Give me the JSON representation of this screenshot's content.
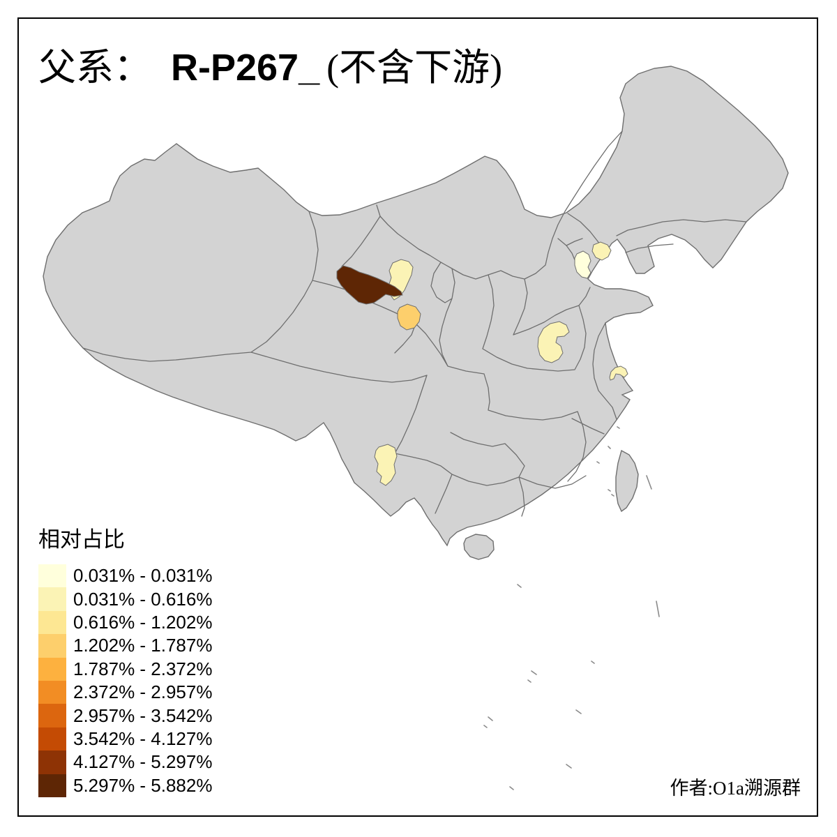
{
  "title": {
    "prefix": "父系：",
    "code": "R-P267_",
    "suffix": "(不含下游)"
  },
  "legend": {
    "title": "相对占比",
    "classes": [
      {
        "label": "0.031% - 0.031%",
        "color": "#FFFFDC"
      },
      {
        "label": "0.031% - 0.616%",
        "color": "#FBF3B5"
      },
      {
        "label": "0.616% - 1.202%",
        "color": "#FDE793"
      },
      {
        "label": "1.202% - 1.787%",
        "color": "#FDCF6C"
      },
      {
        "label": "1.787% - 2.372%",
        "color": "#FDB13F"
      },
      {
        "label": "2.372% - 2.957%",
        "color": "#F28D24"
      },
      {
        "label": "2.957% - 3.542%",
        "color": "#DC660F"
      },
      {
        "label": "3.542% - 4.127%",
        "color": "#C44B04"
      },
      {
        "label": "4.127% - 5.297%",
        "color": "#8E3305"
      },
      {
        "label": "5.297% - 5.882%",
        "color": "#5E2605"
      }
    ]
  },
  "attribution": "作者:O1a溯源群",
  "map": {
    "land_color": "#d3d3d3",
    "border_color": "#6e6e6e",
    "sea_color": "#ffffff",
    "frame_color": "#000000",
    "regions": [
      {
        "name": "hexi-corridor",
        "range": "5.297% - 5.882%",
        "class_index": 9
      },
      {
        "name": "wuwei",
        "range": "0.031% - 0.616%",
        "class_index": 1
      },
      {
        "name": "lanzhou",
        "range": "1.202% - 1.787%",
        "class_index": 3
      },
      {
        "name": "tianjin",
        "range": "0.031% - 0.031%",
        "class_index": 0
      },
      {
        "name": "tangshan",
        "range": "0.031% - 0.616%",
        "class_index": 1
      },
      {
        "name": "zhengzhou",
        "range": "0.031% - 0.616%",
        "class_index": 1
      },
      {
        "name": "changzhou",
        "range": "0.031% - 0.616%",
        "class_index": 1
      },
      {
        "name": "dali-yunnan",
        "range": "0.031% - 0.616%",
        "class_index": 1
      }
    ]
  }
}
